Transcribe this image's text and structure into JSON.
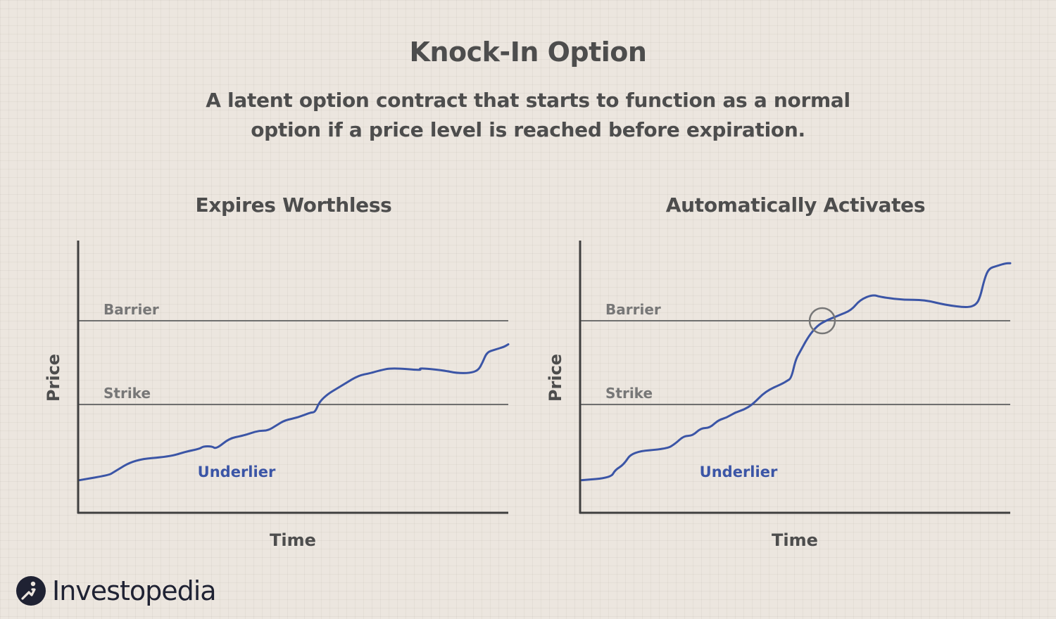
{
  "title": "Knock-In Option",
  "subtitle_line1": "A latent option contract that starts to function as a normal",
  "subtitle_line2": "option if a price level is reached before expiration.",
  "colors": {
    "background": "#ece6df",
    "axis": "#3f3f3f",
    "level_line": "#6f6f6f",
    "level_label": "#777777",
    "underlier": "#3b55a6",
    "text": "#4d4d4d",
    "highlight_circle": "#777777"
  },
  "panels": [
    {
      "title": "Expires Worthless",
      "y_axis_label": "Price",
      "x_axis_label": "Time",
      "barrier_label": "Barrier",
      "strike_label": "Strike",
      "series_label": "Underlier",
      "barrier_level": 72,
      "strike_level": 40,
      "barrier_crossed": false,
      "series": [
        [
          0,
          11
        ],
        [
          7,
          13
        ],
        [
          8,
          14
        ],
        [
          13,
          19
        ],
        [
          21,
          20
        ],
        [
          25,
          22
        ],
        [
          28,
          23
        ],
        [
          29,
          24
        ],
        [
          31,
          24
        ],
        [
          32,
          23
        ],
        [
          35,
          27
        ],
        [
          38,
          28
        ],
        [
          40,
          29
        ],
        [
          42,
          30
        ],
        [
          44,
          30
        ],
        [
          46,
          32
        ],
        [
          48,
          34
        ],
        [
          51,
          35
        ],
        [
          54,
          37
        ],
        [
          55,
          37
        ],
        [
          56,
          41
        ],
        [
          58,
          44
        ],
        [
          60,
          46
        ],
        [
          62,
          48
        ],
        [
          65,
          51
        ],
        [
          68,
          52
        ],
        [
          70,
          53
        ],
        [
          73,
          54
        ],
        [
          80,
          53
        ],
        [
          79,
          54
        ],
        [
          85,
          53
        ],
        [
          88,
          52
        ],
        [
          91,
          52
        ],
        [
          93,
          53
        ],
        [
          94,
          56
        ],
        [
          95,
          60
        ],
        [
          97,
          61
        ],
        [
          99,
          62
        ],
        [
          100,
          63
        ]
      ]
    },
    {
      "title": "Automatically Activates",
      "y_axis_label": "Price",
      "x_axis_label": "Time",
      "barrier_label": "Barrier",
      "strike_label": "Strike",
      "series_label": "Underlier",
      "barrier_level": 72,
      "strike_level": 40,
      "barrier_crossed": true,
      "series": [
        [
          0,
          11
        ],
        [
          7,
          12
        ],
        [
          8,
          15
        ],
        [
          10,
          17
        ],
        [
          12,
          22
        ],
        [
          20,
          23
        ],
        [
          22,
          25
        ],
        [
          24,
          28
        ],
        [
          26,
          28
        ],
        [
          28,
          31
        ],
        [
          30,
          31
        ],
        [
          32,
          34
        ],
        [
          34,
          35
        ],
        [
          36,
          37
        ],
        [
          38,
          38
        ],
        [
          40,
          40
        ],
        [
          43,
          45
        ],
        [
          47,
          48
        ],
        [
          48,
          49
        ],
        [
          49,
          50
        ],
        [
          50,
          57
        ],
        [
          51,
          60
        ],
        [
          53,
          66
        ],
        [
          55,
          70
        ],
        [
          57,
          72
        ],
        [
          60,
          74
        ],
        [
          63,
          76
        ],
        [
          65,
          80
        ],
        [
          68,
          82
        ],
        [
          70,
          81
        ],
        [
          75,
          80
        ],
        [
          80,
          80
        ],
        [
          85,
          78
        ],
        [
          90,
          77
        ],
        [
          92,
          78
        ],
        [
          93,
          81
        ],
        [
          94,
          88
        ],
        [
          95,
          92
        ],
        [
          97,
          93
        ],
        [
          99,
          94
        ],
        [
          100,
          94
        ]
      ]
    }
  ],
  "logo": {
    "text": "Investopedia"
  }
}
